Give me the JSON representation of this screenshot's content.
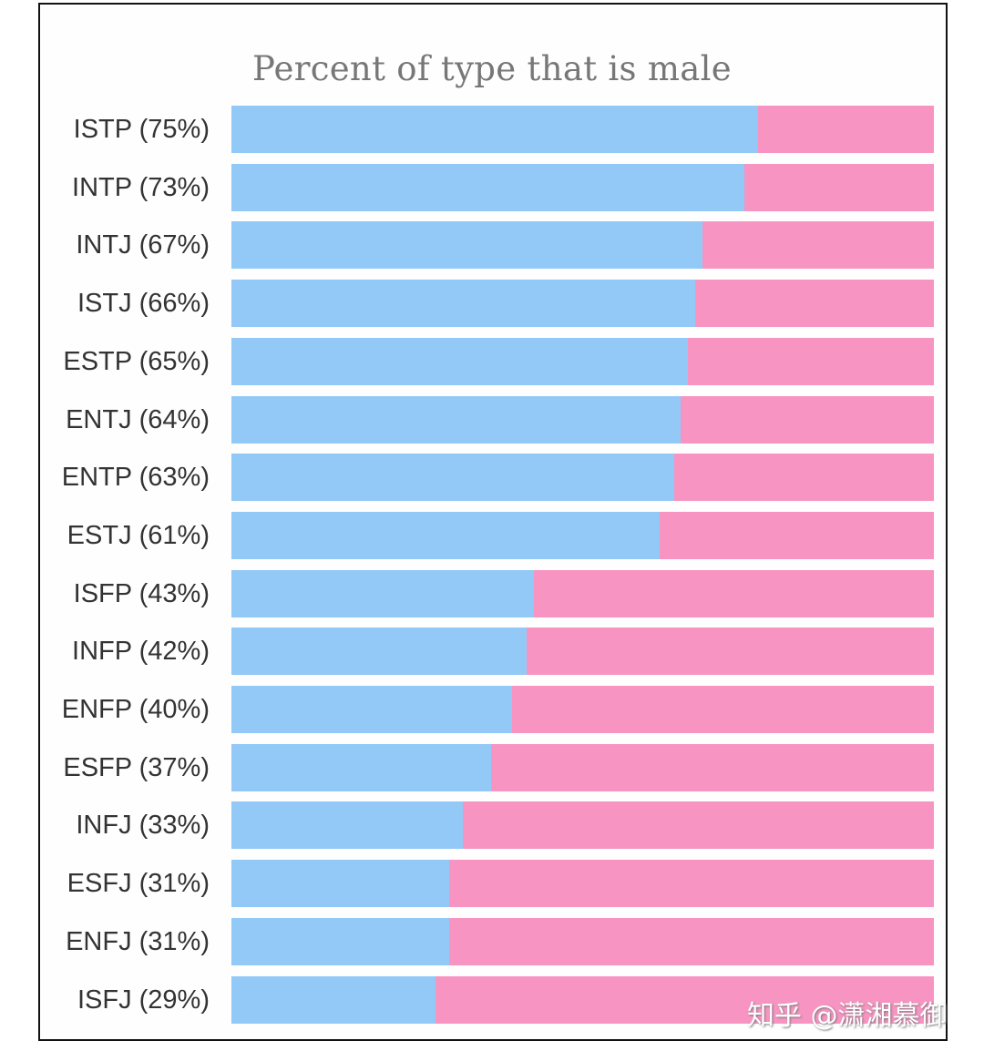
{
  "chart_data": {
    "type": "bar",
    "orientation": "horizontal",
    "stacked": true,
    "title": "Percent of type that is male",
    "categories": [
      "ISTP (75%)",
      "INTP (73%)",
      "INTJ (67%)",
      "ISTJ (66%)",
      "ESTP (65%)",
      "ENTJ (64%)",
      "ENTP (63%)",
      "ESTJ (61%)",
      "ISFP (43%)",
      "INFP (42%)",
      "ENFP (40%)",
      "ESFP (37%)",
      "INFJ (33%)",
      "ESFJ (31%)",
      "ENFJ (31%)",
      "ISFJ (29%)"
    ],
    "series": [
      {
        "values": [
          75,
          73,
          67,
          66,
          65,
          64,
          63,
          61,
          43,
          42,
          40,
          37,
          33,
          31,
          31,
          29
        ],
        "color": "#92c9f7"
      },
      {
        "values": [
          25,
          27,
          33,
          34,
          35,
          36,
          37,
          39,
          57,
          58,
          60,
          63,
          67,
          69,
          69,
          71
        ],
        "color": "#f894c2"
      }
    ],
    "xlim": [
      0,
      100
    ],
    "grid": false,
    "legend": "none"
  },
  "watermark": "知乎 @潇湘慕御"
}
